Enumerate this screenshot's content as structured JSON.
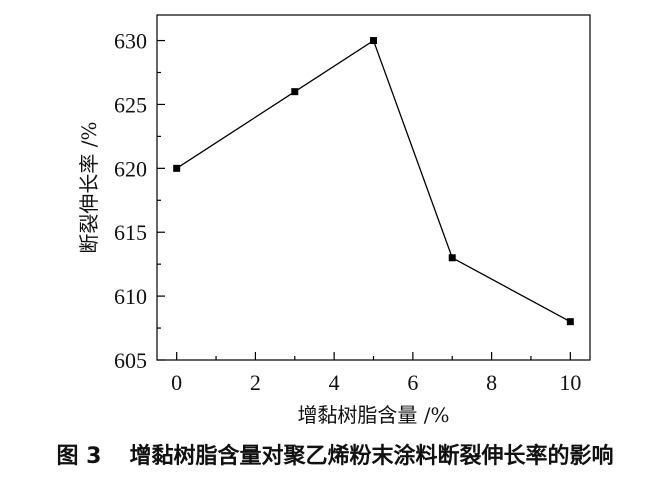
{
  "caption": {
    "figure_number": "图 3",
    "title": "增黏树脂含量对聚乙烯粉末涂料断裂伸长率的影响"
  },
  "chart_data": {
    "type": "line",
    "title": "",
    "xlabel": "增黏树脂含量 /%",
    "ylabel": "断裂伸长率 /%",
    "xlim": [
      -0.5,
      10.5
    ],
    "ylim": [
      605,
      632
    ],
    "xticks": [
      0,
      2,
      4,
      6,
      8,
      10
    ],
    "yticks": [
      605,
      610,
      615,
      620,
      625,
      630
    ],
    "series": [
      {
        "x": [
          0,
          3,
          5,
          7,
          10
        ],
        "y": [
          620,
          626,
          630,
          613,
          608
        ]
      }
    ],
    "grid": false,
    "legend": "none",
    "line_color": "#000000",
    "marker": "square"
  }
}
